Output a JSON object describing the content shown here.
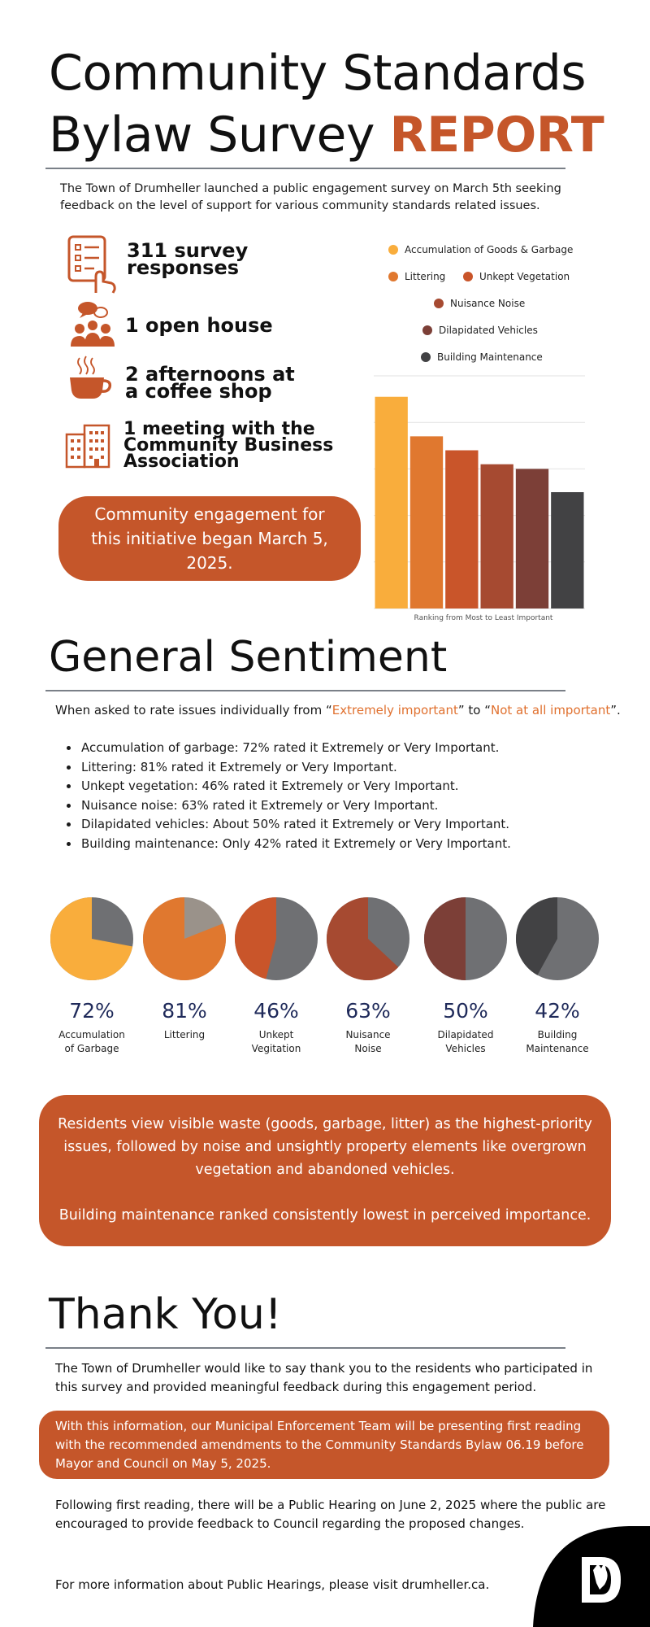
{
  "header": {
    "title_line1": "Community Standards",
    "title_line2": "Bylaw Survey ",
    "title_accent": "REPORT",
    "intro": "The Town of Drumheller launched a public engagement survey on March 5th seeking feedback on the level of support for various community standards related issues."
  },
  "stats": [
    {
      "icon": "survey-clipboard-icon",
      "label": "311 survey\nresponses"
    },
    {
      "icon": "open-house-people-icon",
      "label": "1 open house"
    },
    {
      "icon": "coffee-cup-icon",
      "label": "2 afternoons at\na coffee shop"
    },
    {
      "icon": "office-building-icon",
      "label": "1 meeting with the\nCommunity Business\nAssociation"
    }
  ],
  "engagement_pill": "Community engagement for this initiative began March 5, 2025.",
  "chart_data": {
    "type": "bar",
    "categories": [
      "Accumulation of Goods & Garbage",
      "Littering",
      "Unkept Vegetation",
      "Nuisance Noise",
      "Dilapidated Vehicles",
      "Building Maintenance"
    ],
    "values": [
      91,
      74,
      68,
      62,
      60,
      50
    ],
    "colors": [
      "#f9ad3c",
      "#e0782f",
      "#c9552a",
      "#a64a31",
      "#7c3f37",
      "#424244"
    ],
    "xlabel": "Ranking from Most to Least Important",
    "ylim": [
      0,
      100
    ],
    "grid": true,
    "legend": "top"
  },
  "sentiment": {
    "heading": "General Sentiment",
    "lead_pre": "When asked to rate issues individually from “",
    "lead_hi1": "Extremely important",
    "lead_mid": "” to “",
    "lead_hi2": "Not at all important",
    "lead_post": "”.",
    "bullets": [
      "Accumulation of garbage: 72% rated it Extremely or Very Important.",
      "Littering: 81% rated it Extremely or Very Important.",
      "Unkept vegetation: 46% rated it Extremely or Very Important.",
      "Nuisance noise: 63% rated it Extremely or Very Important.",
      "Dilapidated vehicles: About 50% rated it Extremely or Very Important.",
      "Building maintenance: Only 42% rated it Extremely or Very Important."
    ]
  },
  "pies": [
    {
      "pct": "72%",
      "value": 72,
      "label": "Accumulation\nof Garbage",
      "color": "#f9ad3c",
      "rest": "#6f7073"
    },
    {
      "pct": "81%",
      "value": 81,
      "label": "Littering",
      "color": "#e0782f",
      "rest": "#9a928a"
    },
    {
      "pct": "46%",
      "value": 46,
      "label": "Unkept\nVegitation",
      "color": "#c9552a",
      "rest": "#6f7073"
    },
    {
      "pct": "63%",
      "value": 63,
      "label": "Nuisance\nNoise",
      "color": "#a64a31",
      "rest": "#6f7073"
    },
    {
      "pct": "50%",
      "value": 50,
      "label": "Dilapidated\nVehicles",
      "color": "#7c3f37",
      "rest": "#6f7073"
    },
    {
      "pct": "42%",
      "value": 42,
      "label": "Building\nMaintenance",
      "color": "#424244",
      "rest": "#6f7073"
    }
  ],
  "highlight": {
    "p1": "Residents view visible waste (goods, garbage, litter) as the highest-priority issues, followed by noise and unsightly property elements like overgrown vegetation and abandoned vehicles.",
    "p2": "Building maintenance ranked consistently lowest in perceived importance."
  },
  "thanks": {
    "heading": "Thank You!",
    "p1": "The Town of Drumheller would like to say thank you to the residents who participated in this survey and provided meaningful feedback during this engagement period.",
    "box": "With this information, our Municipal Enforcement Team will be presenting first reading with the recommended amendments to the Community Standards Bylaw 06.19 before Mayor and Council on May 5, 2025.",
    "p2": "Following first reading, there will be a Public Hearing on June 2, 2025 where the public are encouraged to provide feedback to Council regarding the proposed changes.",
    "p3": "For more information about Public Hearings, please visit drumheller.ca."
  }
}
